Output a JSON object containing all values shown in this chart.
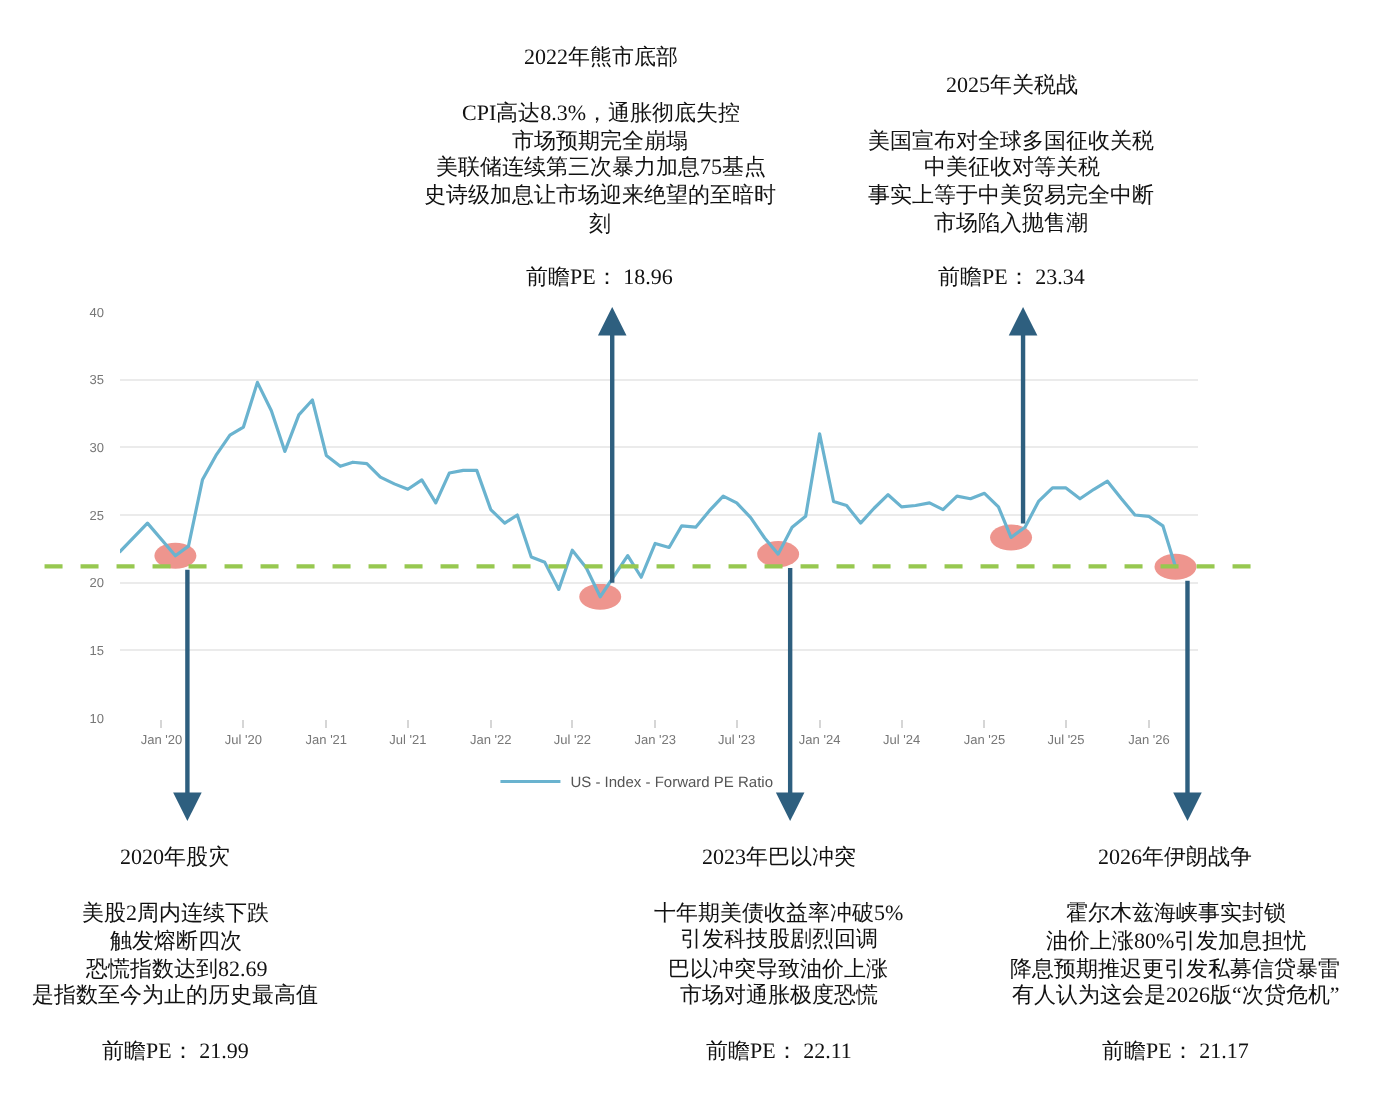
{
  "chart_data": {
    "type": "line",
    "x": [
      "2019-10",
      "2019-12",
      "2020-02",
      "2020-03",
      "2020-04",
      "2020-05",
      "2020-06",
      "2020-07",
      "2020-08",
      "2020-09",
      "2020-10",
      "2020-11",
      "2020-12",
      "2021-01",
      "2021-02",
      "2021-03",
      "2021-04",
      "2021-05",
      "2021-06",
      "2021-07",
      "2021-08",
      "2021-09",
      "2021-10",
      "2021-11",
      "2021-12",
      "2022-01",
      "2022-02",
      "2022-03",
      "2022-04",
      "2022-05",
      "2022-06",
      "2022-07",
      "2022-08",
      "2022-09",
      "2022-11",
      "2022-12",
      "2023-01",
      "2023-02",
      "2023-03",
      "2023-04",
      "2023-05",
      "2023-06",
      "2023-07",
      "2023-08",
      "2023-09",
      "2023-10",
      "2023-11",
      "2023-12",
      "2024-01",
      "2024-02",
      "2024-03",
      "2024-04",
      "2024-05",
      "2024-06",
      "2024-07",
      "2024-08",
      "2024-09",
      "2024-10",
      "2024-11",
      "2024-12",
      "2025-01",
      "2025-02",
      "2025-03",
      "2025-04",
      "2025-05",
      "2025-06",
      "2025-07",
      "2025-08",
      "2025-09",
      "2025-10",
      "2025-11",
      "2025-12",
      "2026-01",
      "2026-02",
      "2026-03"
    ],
    "series": [
      {
        "name": "US - Index - Forward PE Ratio",
        "color": "#6ab3cf",
        "values": [
          22.3,
          24.4,
          21.99,
          22.7,
          27.6,
          29.4,
          30.9,
          31.5,
          34.8,
          32.7,
          29.7,
          32.4,
          33.5,
          29.4,
          28.6,
          28.9,
          28.8,
          27.8,
          27.3,
          26.9,
          27.6,
          25.9,
          28.1,
          28.3,
          28.3,
          25.4,
          24.4,
          25.0,
          21.9,
          21.5,
          19.5,
          22.4,
          21.1,
          18.96,
          22.0,
          20.4,
          22.9,
          22.6,
          24.2,
          24.1,
          25.3,
          26.4,
          25.9,
          24.8,
          23.3,
          22.11,
          24.1,
          24.9,
          31.0,
          26.0,
          25.7,
          24.4,
          25.5,
          26.5,
          25.6,
          25.7,
          25.9,
          25.4,
          26.4,
          26.2,
          26.6,
          25.6,
          23.34,
          24.1,
          26.0,
          27.0,
          27.0,
          26.2,
          26.9,
          27.5,
          26.2,
          25.0,
          24.9,
          24.2,
          21.17
        ]
      }
    ],
    "xlim": [
      "2019-10",
      "2026-04-20"
    ],
    "xticks": [
      {
        "value": "2020-01",
        "label": "Jan '20"
      },
      {
        "value": "2020-07",
        "label": "Jul '20"
      },
      {
        "value": "2021-01",
        "label": "Jan '21"
      },
      {
        "value": "2021-07",
        "label": "Jul '21"
      },
      {
        "value": "2022-01",
        "label": "Jan '22"
      },
      {
        "value": "2022-07",
        "label": "Jul '22"
      },
      {
        "value": "2023-01",
        "label": "Jan '23"
      },
      {
        "value": "2023-07",
        "label": "Jul '23"
      },
      {
        "value": "2024-01",
        "label": "Jan '24"
      },
      {
        "value": "2024-07",
        "label": "Jul '24"
      },
      {
        "value": "2025-01",
        "label": "Jan '25"
      },
      {
        "value": "2025-07",
        "label": "Jul '25"
      },
      {
        "value": "2026-01",
        "label": "Jan '26"
      }
    ],
    "ylim": [
      10,
      40
    ],
    "yticks": [
      10,
      15,
      20,
      25,
      30,
      35,
      40
    ],
    "grid": "y",
    "legend": "bottom",
    "ref_lines": [
      {
        "axis": "y",
        "value": 21.2,
        "color": "#97c850",
        "line_style": "dashed"
      }
    ],
    "annotations": [
      {
        "text": "2020年股灾",
        "x": "2020-02",
        "y": 21.99
      },
      "美股2周内连续下跌",
      "触发熔断四次",
      "恐慌指数达到82.69",
      "是指数至今为止的历史最高值",
      "前瞻PE： 21.99",
      {
        "text": "前瞻PE： 18.96",
        "x": "2022-09",
        "y": 18.96
      },
      "2022年熊市底部",
      "CPI高达8.3%，通胀彻底失控",
      "市场预期完全崩塌",
      "美联储连续第三次暴力加息75基点",
      "史诗级加息让市场迎来绝望的至暗时刻",
      {
        "text": "2023年巴以冲突",
        "x": "2023-10",
        "y": 22.11
      },
      "十年期美债收益率冲破5%",
      "引发科技股剧烈回调",
      "巴以冲突导致油价上涨",
      "市场对通胀极度恐慌",
      "前瞻PE： 22.11",
      {
        "text": "前瞻PE： 23.34",
        "x": "2025-03",
        "y": 23.34
      },
      "2025年关税战",
      "美国宣布对全球多国征收关税",
      "中美征收对等关税",
      "事实上等于中美贸易完全中断",
      "市场陷入抛售潮",
      {
        "text": "2026年伊朗战争",
        "x": "2026-03",
        "y": 21.17
      },
      "霍尔木兹海峡事实封锁",
      "油价上涨80%引发加息担忧",
      "降息预期推迟更引发私募信贷暴雷",
      "有人认为这会是2026版“次贷危机”",
      "前瞻PE： 21.17"
    ]
  }
}
